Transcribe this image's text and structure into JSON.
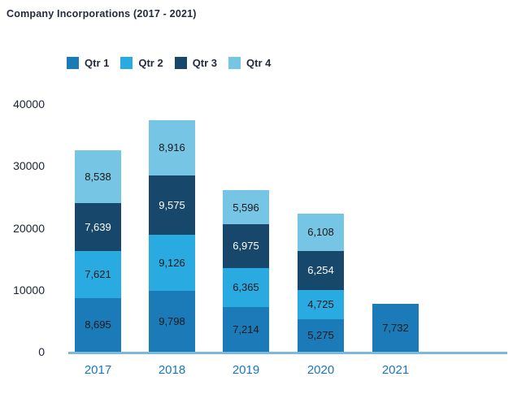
{
  "title": "Company Incorporations (2017 - 2021)",
  "colors": {
    "qtr1": "#1b7ab8",
    "qtr2": "#29abe2",
    "qtr3": "#17486c",
    "qtr4": "#77c5e4",
    "axis_line": "#7cb9dd",
    "year_label": "#1b76bb",
    "heading_text": "#232b3e",
    "tick_text": "#1b2433",
    "value_text_dark": "#191919",
    "value_text_light": "#ffffff"
  },
  "legend": {
    "items": [
      {
        "label": "Qtr 1",
        "color": "#1b7ab8"
      },
      {
        "label": "Qtr 2",
        "color": "#29abe2"
      },
      {
        "label": "Qtr 3",
        "color": "#17486c"
      },
      {
        "label": "Qtr 4",
        "color": "#77c5e4"
      }
    ]
  },
  "chart_data": {
    "type": "bar",
    "stacked": true,
    "title": "Company Incorporations (2017 - 2021)",
    "categories": [
      "2017",
      "2018",
      "2019",
      "2020",
      "2021"
    ],
    "series": [
      {
        "name": "Qtr 1",
        "color": "#1b7ab8",
        "values": [
          8695,
          9798,
          7214,
          5275,
          7732
        ]
      },
      {
        "name": "Qtr 2",
        "color": "#29abe2",
        "values": [
          7621,
          9126,
          6365,
          4725,
          null
        ]
      },
      {
        "name": "Qtr 3",
        "color": "#17486c",
        "values": [
          7639,
          9575,
          6975,
          6254,
          null
        ]
      },
      {
        "name": "Qtr 4",
        "color": "#77c5e4",
        "values": [
          8538,
          8916,
          5596,
          6108,
          null
        ]
      }
    ],
    "y_ticks": [
      0,
      10000,
      20000,
      30000,
      40000
    ],
    "ylim": [
      0,
      40000
    ],
    "grid": false,
    "legend_position": "top",
    "value_labels_shown": true
  }
}
